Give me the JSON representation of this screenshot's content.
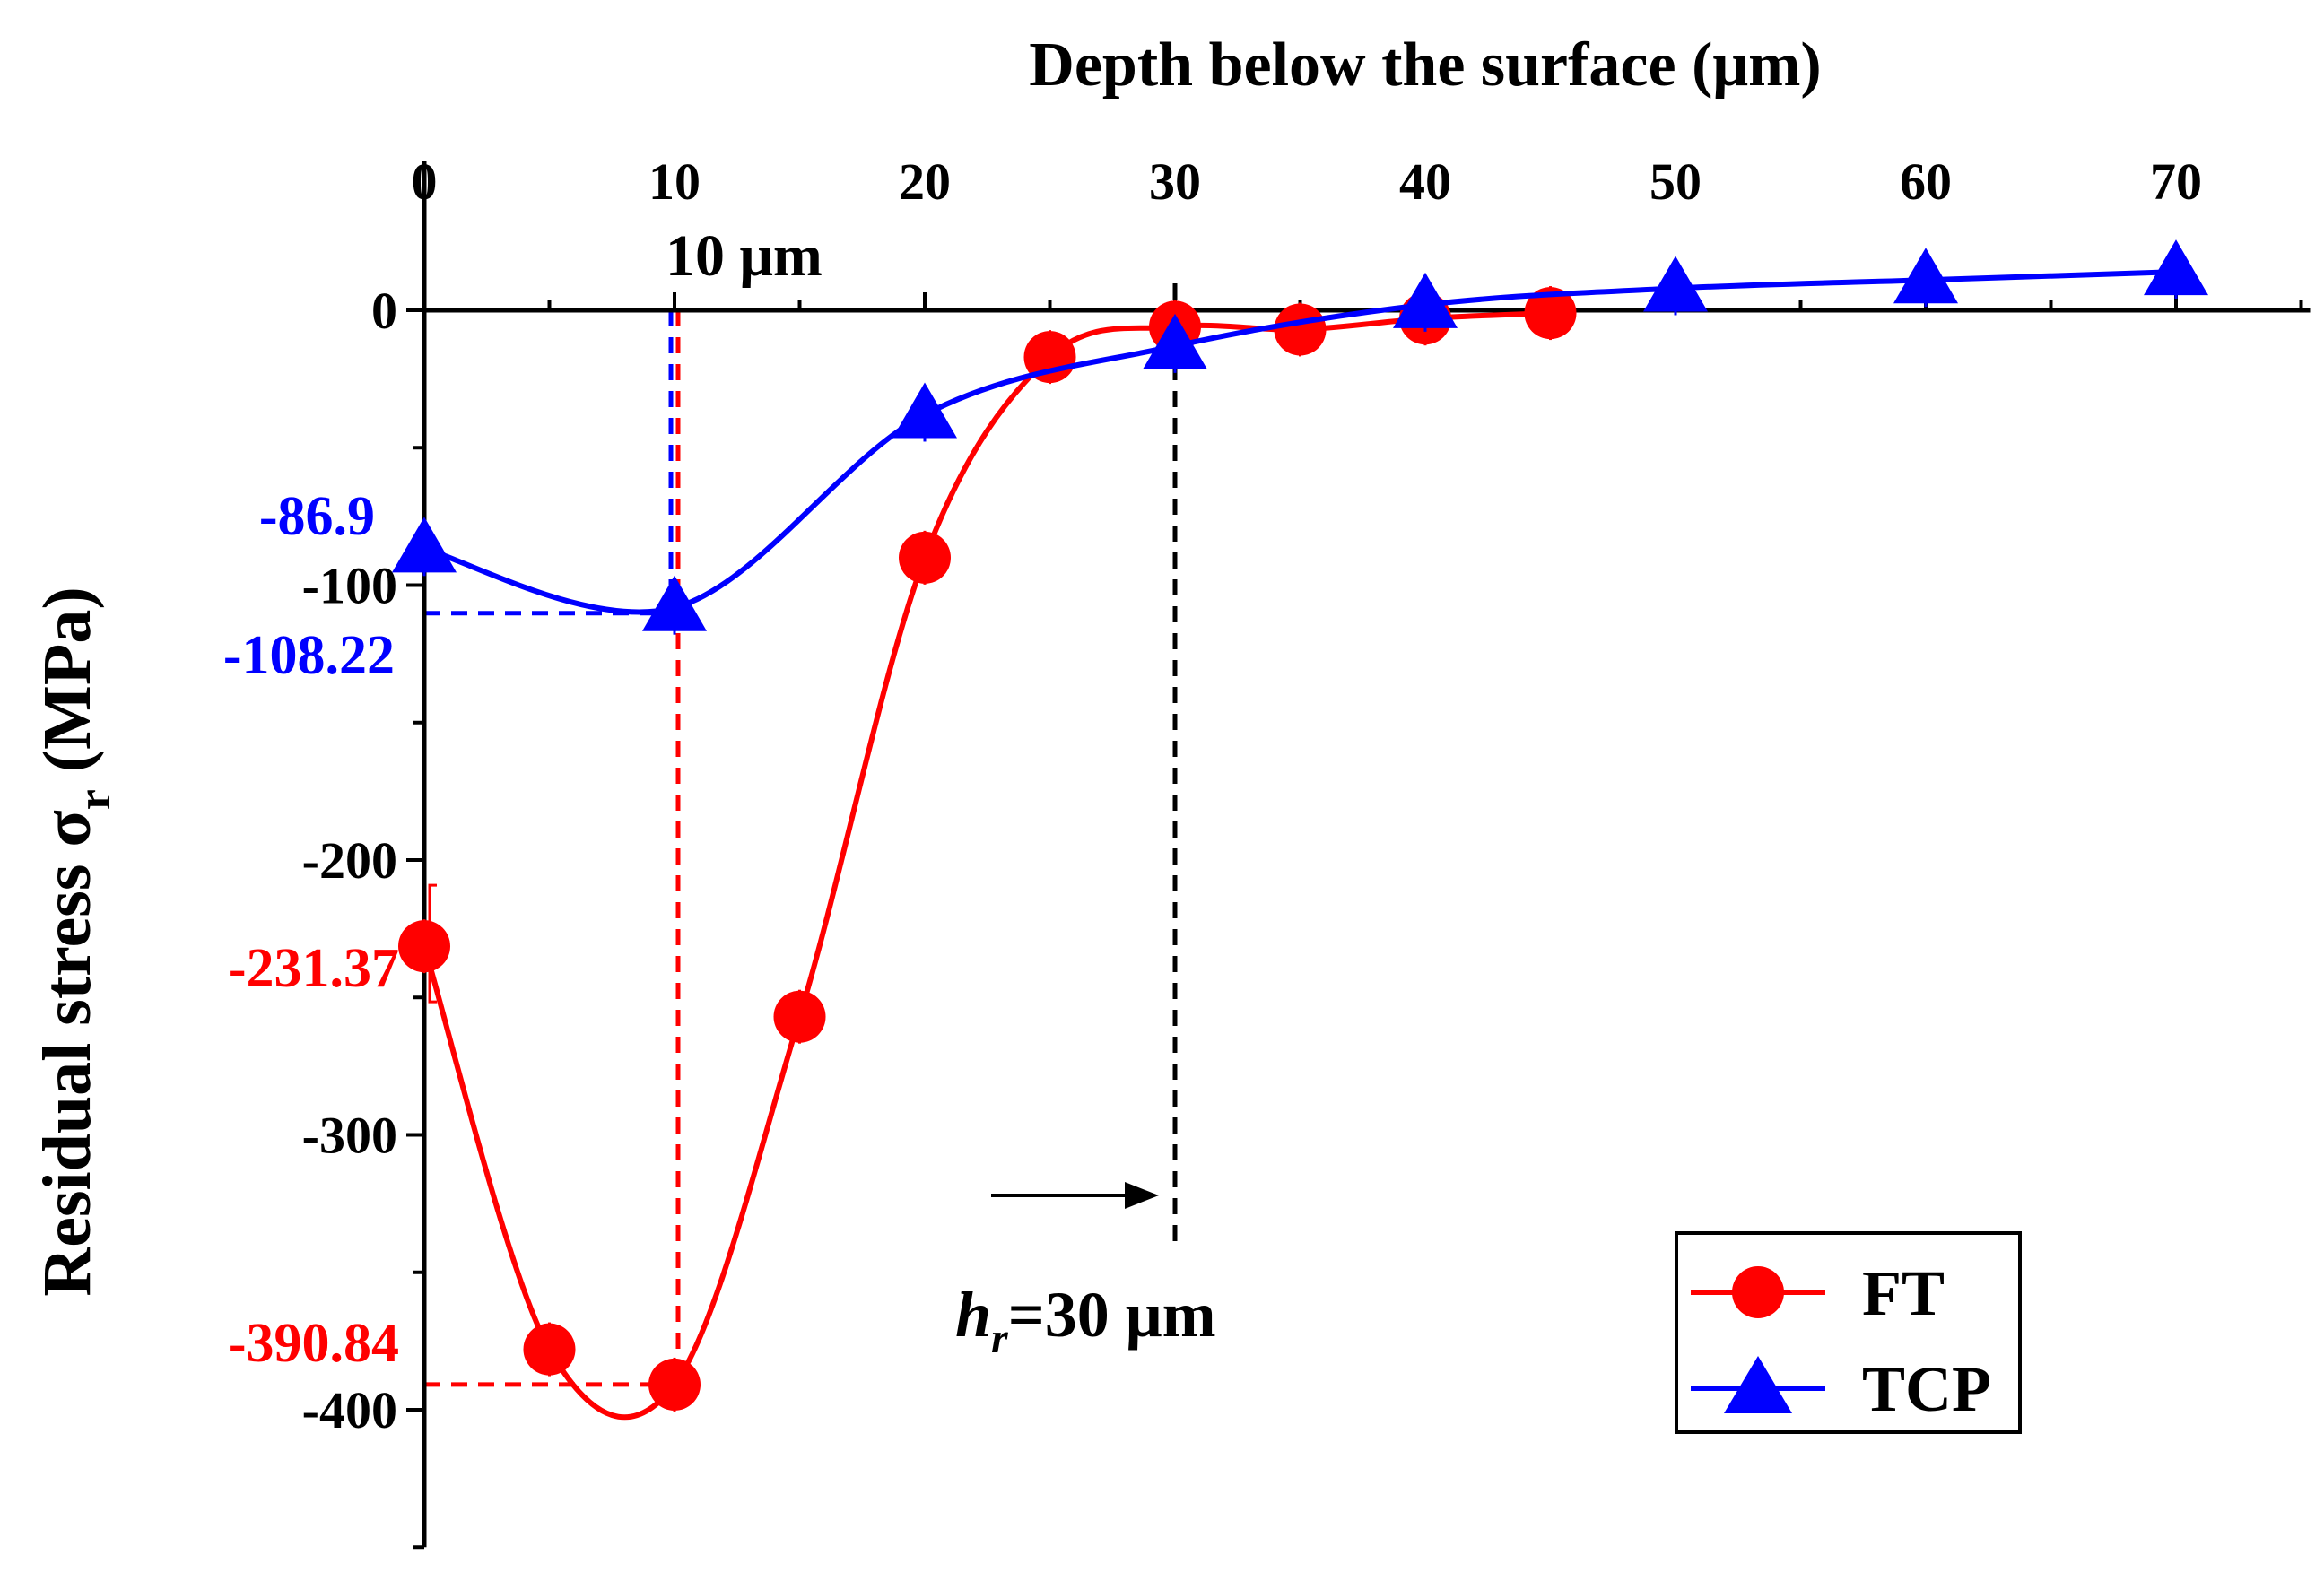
{
  "chart_data": {
    "type": "line",
    "title": "",
    "xlabel": "Depth below the surface (μm)",
    "ylabel_main": "Residual stress σ",
    "ylabel_sub": "r",
    "ylabel_unit": " (MPa)",
    "xlim": [
      0,
      75
    ],
    "ylim": [
      -450,
      45
    ],
    "x_ticks": [
      0,
      10,
      20,
      30,
      40,
      50,
      60,
      70
    ],
    "y_ticks": [
      0,
      -100,
      -200,
      -300,
      -400
    ],
    "series": [
      {
        "name": "FT",
        "color": "#ff0000",
        "marker": "circle",
        "x": [
          0,
          5,
          10,
          15,
          20,
          25,
          30,
          35,
          40,
          45
        ],
        "y": [
          -231.37,
          -378,
          -390.84,
          -257,
          -90,
          -17,
          -6,
          -7,
          -3,
          -1
        ]
      },
      {
        "name": "TCP",
        "color": "#0000ff",
        "marker": "triangle",
        "x": [
          0,
          10,
          20,
          30,
          40,
          50,
          60,
          70
        ],
        "y": [
          -86.9,
          -108.22,
          -38,
          -13,
          2,
          8,
          11,
          14
        ]
      }
    ],
    "annotations": {
      "ft_surface": {
        "text": "-231.37",
        "value": -231.37,
        "color": "#ff0000"
      },
      "ft_min": {
        "text": "-390.84",
        "value": -390.84,
        "depth": 10,
        "color": "#ff0000"
      },
      "tcp_surface": {
        "text": "-86.9",
        "value": -86.9,
        "color": "#0000ff"
      },
      "tcp_min": {
        "text": "-108.22",
        "value": -108.22,
        "depth": 10,
        "color": "#0000ff"
      },
      "depth_marker": {
        "text": "10 μm",
        "depth": 10
      },
      "hr_marker": {
        "text_italic": "h",
        "text_sub": "r",
        "text_rest": "=30 μm",
        "depth": 30
      }
    },
    "legend": {
      "position": "bottom-right",
      "entries": [
        "FT",
        "TCP"
      ]
    },
    "grid": false
  }
}
